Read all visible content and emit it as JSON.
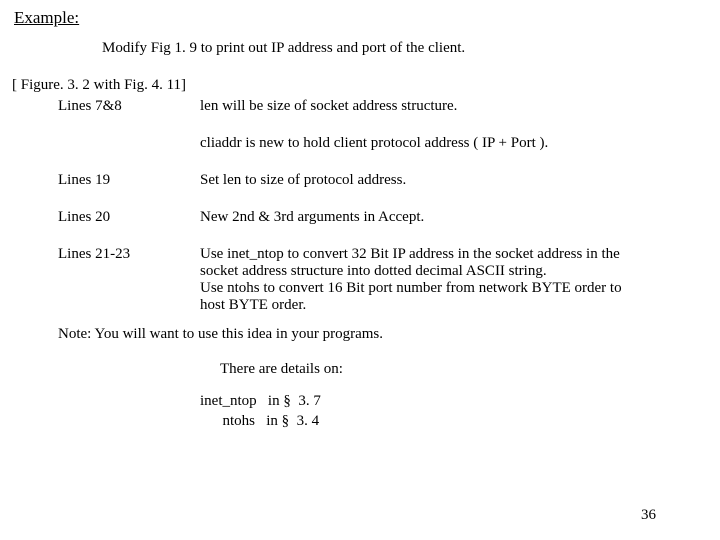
{
  "title": "Example:",
  "intro": "Modify  Fig 1. 9 to print out IP address and port of the client.",
  "figref": "[ Figure. 3. 2 with Fig.  4. 11]",
  "rows": [
    {
      "left": "Lines 7&8",
      "right": "len will be size of socket address structure."
    }
  ],
  "cliaddr": "cliaddr is new to hold client protocol address ( IP + Port ).",
  "line19": {
    "left": "Lines 19",
    "right": "Set  len to size of protocol address."
  },
  "line20": {
    "left": "Lines 20",
    "right": "New 2nd & 3rd arguments in Accept."
  },
  "line2123": {
    "left": "Lines 21-23",
    "right1": "Use inet_ntop to convert 32 Bit IP address in the socket address in the",
    "right2": " socket address structure into dotted decimal ASCII string.",
    "right3": "Use  ntohs to convert 16 Bit port number from network BYTE order to",
    "right4": "host BYTE order."
  },
  "note": "Note:  You will want to use this idea in your programs.",
  "details": "There are details on:",
  "func1": "inet_ntop   in §  3. 7",
  "func2": "      ntohs   in §  3. 4",
  "pagenum": "36"
}
